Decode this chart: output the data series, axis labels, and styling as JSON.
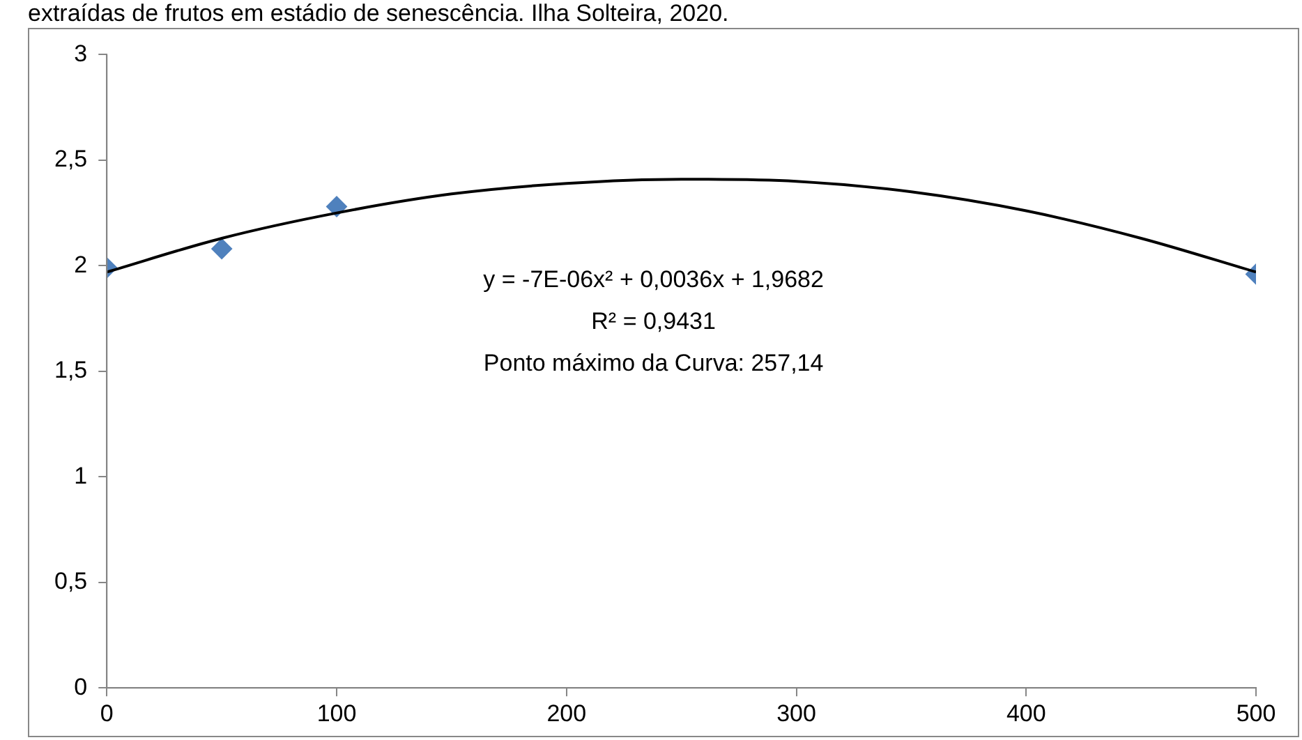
{
  "chart_data": {
    "type": "scatter",
    "title": "extraídas de frutos em estádio de senescência. Ilha Solteira, 2020.",
    "series": [
      {
        "type": "scatter",
        "color": "#4f81bd",
        "marker": "diamond",
        "x": [
          0,
          50,
          100,
          500
        ],
        "values": [
          1.99,
          2.08,
          2.28,
          1.96
        ]
      },
      {
        "type": "line",
        "color": "#000000",
        "marker": "none",
        "x": [
          0,
          50,
          100,
          150,
          200,
          250,
          300,
          350,
          400,
          450,
          500
        ],
        "values": [
          1.97,
          2.13,
          2.25,
          2.34,
          2.39,
          2.41,
          2.4,
          2.35,
          2.26,
          2.13,
          1.97
        ]
      }
    ],
    "xlim": [
      0,
      500
    ],
    "xticks": [
      0,
      100,
      200,
      300,
      400,
      500
    ],
    "ylim": [
      0,
      3
    ],
    "yticks": [
      0,
      {
        "value": 0.5,
        "label": "0,5"
      },
      1,
      {
        "value": 1.5,
        "label": "1,5"
      },
      2,
      {
        "value": 2.5,
        "label": "2,5"
      },
      3
    ],
    "annotations": [
      "y = -7E-06x² + 0,0036x + 1,9682",
      "R² = 0,9431",
      "Ponto máximo da Curva: 257,14"
    ],
    "grid": false,
    "legend": false
  }
}
